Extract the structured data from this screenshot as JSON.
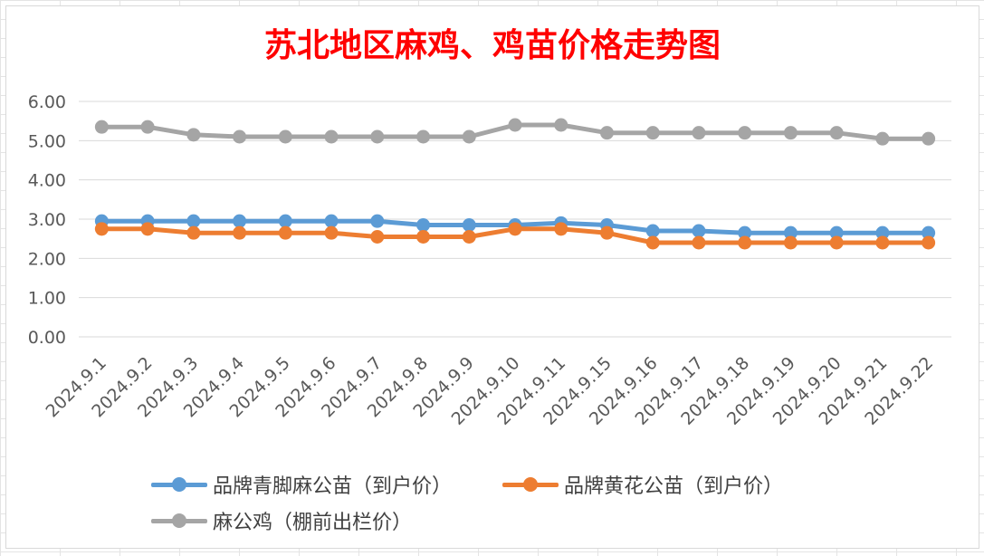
{
  "chart_data": {
    "type": "line",
    "title": "苏北地区麻鸡、鸡苗价格走势图",
    "categories": [
      "2024.9.1",
      "2024.9.2",
      "2024.9.3",
      "2024.9.4",
      "2024.9.5",
      "2024.9.6",
      "2024.9.7",
      "2024.9.8",
      "2024.9.9",
      "2024.9.10",
      "2024.9.11",
      "2024.9.15",
      "2024.9.16",
      "2024.9.17",
      "2024.9.18",
      "2024.9.19",
      "2024.9.20",
      "2024.9.21",
      "2024.9.22"
    ],
    "ylim": [
      0,
      6
    ],
    "yticks": [
      "0.00",
      "1.00",
      "2.00",
      "3.00",
      "4.00",
      "5.00",
      "6.00"
    ],
    "grid": true,
    "legend_position": "bottom",
    "series": [
      {
        "name": "品牌青脚麻公苗（到户价）",
        "color": "#5b9bd5",
        "values": [
          2.95,
          2.95,
          2.95,
          2.95,
          2.95,
          2.95,
          2.95,
          2.85,
          2.85,
          2.85,
          2.9,
          2.85,
          2.7,
          2.7,
          2.65,
          2.65,
          2.65,
          2.65,
          2.65
        ]
      },
      {
        "name": "品牌黄花公苗（到户价）",
        "color": "#ed7d31",
        "values": [
          2.75,
          2.75,
          2.65,
          2.65,
          2.65,
          2.65,
          2.55,
          2.55,
          2.55,
          2.75,
          2.75,
          2.65,
          2.4,
          2.4,
          2.4,
          2.4,
          2.4,
          2.4,
          2.4
        ]
      },
      {
        "name": "麻公鸡（棚前出栏价）",
        "color": "#a5a5a5",
        "values": [
          5.35,
          5.35,
          5.15,
          5.1,
          5.1,
          5.1,
          5.1,
          5.1,
          5.1,
          5.4,
          5.4,
          5.2,
          5.2,
          5.2,
          5.2,
          5.2,
          5.2,
          5.05,
          5.05
        ]
      }
    ]
  }
}
